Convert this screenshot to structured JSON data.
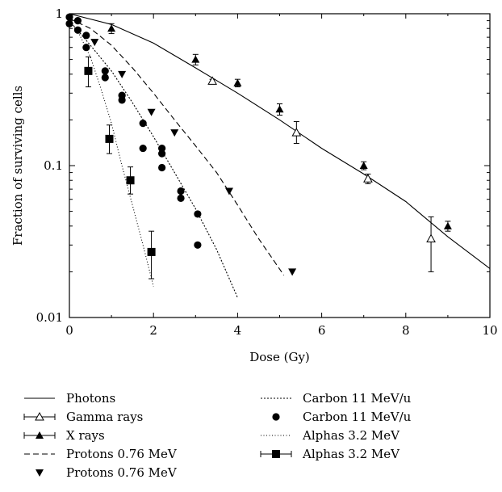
{
  "chart_data": {
    "type": "scatter",
    "xlabel": "Dose (Gy)",
    "ylabel": "Fraction of surviving cells",
    "xlim": [
      0,
      10
    ],
    "ylim": [
      0.01,
      1
    ],
    "yscale": "log",
    "x_ticks": [
      "0",
      "2",
      "4",
      "6",
      "8",
      "10"
    ],
    "y_ticks": [
      "0.01",
      "0.1",
      "1"
    ],
    "grid": false,
    "legend_position": "bottom",
    "series": [
      {
        "name": "Photons",
        "kind": "line",
        "style": "solid",
        "x": [
          0,
          1,
          2,
          3,
          4,
          5,
          6,
          7,
          8,
          9,
          10
        ],
        "y": [
          1.0,
          0.85,
          0.64,
          0.44,
          0.3,
          0.2,
          0.13,
          0.088,
          0.058,
          0.034,
          0.021
        ]
      },
      {
        "name": "Gamma rays",
        "kind": "marker",
        "marker": "triangle-open",
        "x": [
          3.4,
          5.4,
          7.1,
          8.6
        ],
        "y": [
          0.36,
          0.165,
          0.082,
          0.033
        ],
        "err_low": [
          0.35,
          0.14,
          0.076,
          0.02
        ],
        "err_high": [
          0.37,
          0.195,
          0.088,
          0.046
        ]
      },
      {
        "name": "X rays",
        "kind": "marker",
        "marker": "triangle-filled",
        "x": [
          1.0,
          3.0,
          4.0,
          5.0,
          7.0,
          9.0
        ],
        "y": [
          0.8,
          0.5,
          0.35,
          0.235,
          0.1,
          0.04
        ],
        "err_low": [
          0.74,
          0.46,
          0.33,
          0.215,
          0.094,
          0.037
        ],
        "err_high": [
          0.86,
          0.54,
          0.37,
          0.255,
          0.106,
          0.043
        ]
      },
      {
        "name": "Protons 0.76 MeV",
        "kind": "line",
        "style": "dashed",
        "x": [
          0,
          0.5,
          1,
          1.5,
          2,
          2.5,
          3,
          3.5,
          4,
          4.5,
          5.1
        ],
        "y": [
          0.93,
          0.8,
          0.62,
          0.44,
          0.3,
          0.2,
          0.135,
          0.09,
          0.055,
          0.033,
          0.019
        ]
      },
      {
        "name": "Protons 0.76 MeV",
        "kind": "marker",
        "marker": "triangle-down-filled",
        "x": [
          0.6,
          1.25,
          1.95,
          2.5,
          3.8,
          5.3
        ],
        "y": [
          0.65,
          0.4,
          0.225,
          0.165,
          0.068,
          0.02
        ]
      },
      {
        "name": "Carbon 11 MeV/u",
        "kind": "line",
        "style": "dotted",
        "x": [
          0,
          0.5,
          1,
          1.5,
          2,
          2.5,
          3,
          3.5,
          4
        ],
        "y": [
          0.9,
          0.62,
          0.42,
          0.26,
          0.155,
          0.09,
          0.052,
          0.028,
          0.0135
        ]
      },
      {
        "name": "Carbon 11 MeV/u",
        "kind": "marker",
        "marker": "circle-filled",
        "x": [
          0.0,
          0.0,
          0.2,
          0.2,
          0.4,
          0.4,
          0.85,
          0.85,
          1.25,
          1.25,
          1.75,
          1.75,
          2.2,
          2.2,
          2.2,
          2.65,
          2.65,
          3.05,
          3.05
        ],
        "y": [
          0.95,
          0.86,
          0.9,
          0.78,
          0.72,
          0.6,
          0.42,
          0.38,
          0.29,
          0.27,
          0.19,
          0.13,
          0.13,
          0.12,
          0.097,
          0.068,
          0.061,
          0.048,
          0.03
        ]
      },
      {
        "name": "Alphas 3.2 MeV",
        "kind": "line",
        "style": "dotted-fine",
        "x": [
          0,
          0.25,
          0.5,
          0.75,
          1,
          1.25,
          1.5,
          1.75,
          2.0
        ],
        "y": [
          0.9,
          0.72,
          0.52,
          0.32,
          0.19,
          0.1,
          0.055,
          0.03,
          0.016
        ]
      },
      {
        "name": "Alphas 3.2 MeV",
        "kind": "marker",
        "marker": "square-filled",
        "x": [
          0.45,
          0.95,
          1.45,
          1.95
        ],
        "y": [
          0.42,
          0.15,
          0.08,
          0.027
        ],
        "err_low": [
          0.33,
          0.12,
          0.065,
          0.018
        ],
        "err_high": [
          0.52,
          0.185,
          0.098,
          0.037
        ]
      }
    ]
  }
}
